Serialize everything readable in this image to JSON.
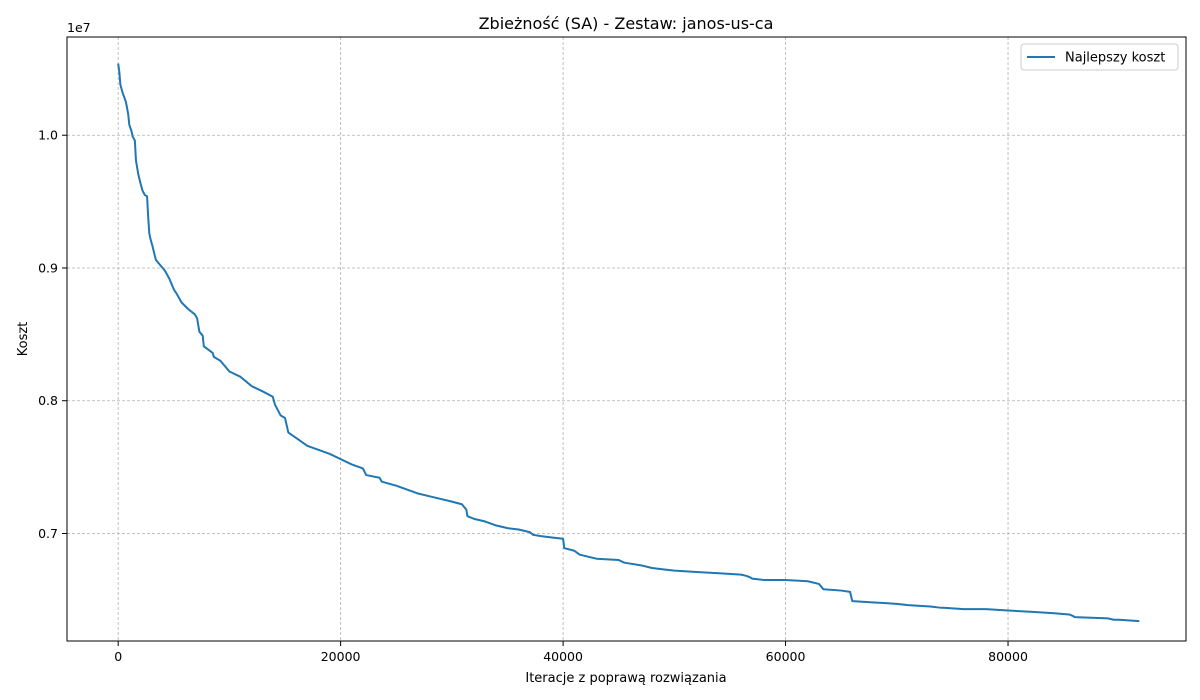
{
  "chart_data": {
    "type": "line",
    "title": "Zbieżność (SA) - Zestaw: janos-us-ca",
    "xlabel": "Iteracje z poprawą rozwiązania",
    "ylabel": "Koszt",
    "y_offset_label": "1e7",
    "xlim": [
      -4600,
      96000
    ],
    "ylim": [
      6190000,
      10740000
    ],
    "xticks": [
      0,
      20000,
      40000,
      60000,
      80000
    ],
    "xtick_labels": [
      "0",
      "20000",
      "40000",
      "60000",
      "80000"
    ],
    "yticks": [
      7000000,
      8000000,
      9000000,
      10000000
    ],
    "ytick_labels": [
      "0.7",
      "0.8",
      "0.9",
      "1.0"
    ],
    "grid": true,
    "legend_position": "top-right",
    "series": [
      {
        "name": "Najlepszy koszt",
        "color": "#1f77b4",
        "x": [
          0,
          100,
          200,
          400,
          700,
          900,
          1000,
          1200,
          1300,
          1500,
          1600,
          1800,
          2000,
          2200,
          2400,
          2600,
          2700,
          2800,
          2900,
          3100,
          3300,
          3400,
          3800,
          4200,
          4600,
          5000,
          5300,
          5700,
          6300,
          6900,
          7100,
          7300,
          7600,
          7700,
          8500,
          8600,
          9200,
          10000,
          11000,
          12000,
          13000,
          13900,
          14100,
          14600,
          15000,
          15300,
          16000,
          17000,
          18000,
          19000,
          20000,
          21000,
          22000,
          22300,
          23500,
          23700,
          25000,
          26000,
          27000,
          28000,
          29000,
          30000,
          30900,
          31300,
          31400,
          32000,
          33000,
          34000,
          35000,
          36000,
          37000,
          37300,
          38000,
          39000,
          40000,
          40100,
          41000,
          41500,
          43000,
          45000,
          45500,
          47000,
          48000,
          49000,
          50000,
          52000,
          54000,
          56000,
          56500,
          56800,
          57000,
          58000,
          60000,
          62000,
          63000,
          63200,
          63400,
          65000,
          65800,
          66000,
          68000,
          70000,
          71000,
          73000,
          74000,
          74200,
          76000,
          78000,
          80000,
          82000,
          84000,
          85500,
          85800,
          86000,
          89000,
          89500,
          90000,
          91800
        ],
        "y": [
          10540000,
          10480000,
          10380000,
          10320000,
          10250000,
          10160000,
          10080000,
          10030000,
          9990000,
          9960000,
          9810000,
          9710000,
          9640000,
          9580000,
          9550000,
          9540000,
          9380000,
          9260000,
          9220000,
          9160000,
          9090000,
          9060000,
          9020000,
          8980000,
          8920000,
          8840000,
          8800000,
          8740000,
          8690000,
          8650000,
          8620000,
          8520000,
          8490000,
          8410000,
          8360000,
          8330000,
          8300000,
          8220000,
          8180000,
          8110000,
          8070000,
          8030000,
          7970000,
          7890000,
          7870000,
          7760000,
          7720000,
          7660000,
          7630000,
          7600000,
          7560000,
          7520000,
          7490000,
          7440000,
          7420000,
          7390000,
          7360000,
          7330000,
          7300000,
          7280000,
          7260000,
          7240000,
          7220000,
          7180000,
          7130000,
          7110000,
          7090000,
          7060000,
          7040000,
          7030000,
          7010000,
          6990000,
          6980000,
          6970000,
          6960000,
          6890000,
          6870000,
          6840000,
          6810000,
          6800000,
          6780000,
          6760000,
          6740000,
          6730000,
          6720000,
          6710000,
          6700000,
          6690000,
          6680000,
          6670000,
          6660000,
          6650000,
          6650000,
          6640000,
          6620000,
          6600000,
          6580000,
          6570000,
          6560000,
          6490000,
          6480000,
          6470000,
          6460000,
          6450000,
          6440000,
          6440000,
          6430000,
          6430000,
          6420000,
          6410000,
          6400000,
          6390000,
          6380000,
          6370000,
          6360000,
          6350000,
          6350000,
          6340000
        ]
      }
    ]
  }
}
